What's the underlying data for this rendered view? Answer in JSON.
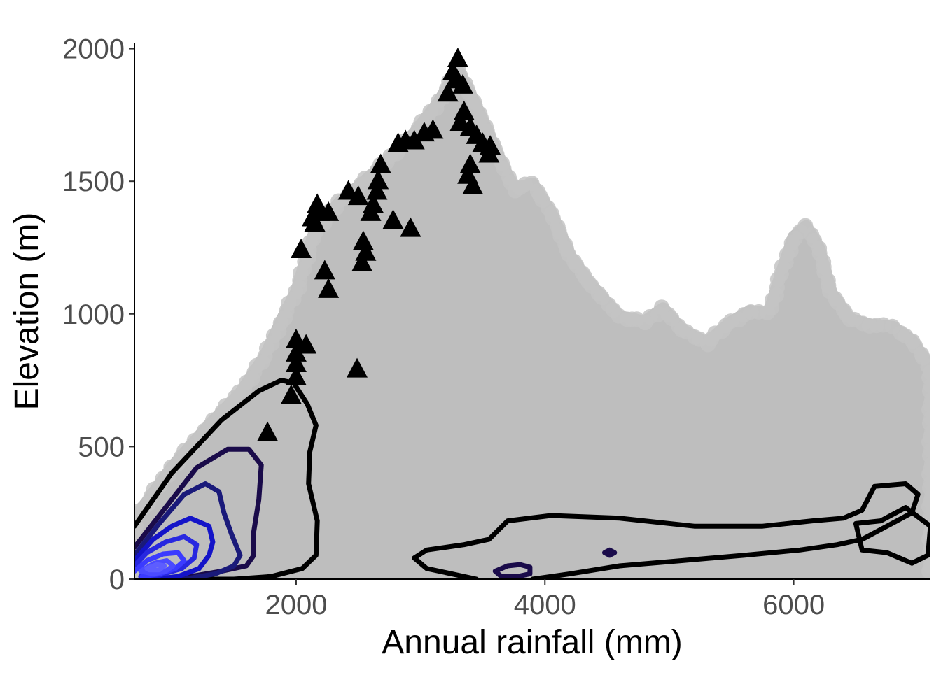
{
  "chart_data": {
    "type": "scatter",
    "title": "",
    "xlabel": "Annual rainfall (mm)",
    "ylabel": "Elevation (m)",
    "xlim": [
      700,
      7100
    ],
    "ylim": [
      0,
      2020
    ],
    "x_ticks": [
      2000,
      4000,
      6000
    ],
    "y_ticks": [
      0,
      500,
      1000,
      1500,
      2000
    ],
    "grid": false,
    "legend": "none",
    "colors": {
      "background_points": "#bebebe",
      "triangles": "#000000",
      "contour_dark": "#000000",
      "contour_mid": "#1a0b4a",
      "contour_blue": "#1414c8",
      "contour_core": "#3b3bff",
      "tick_text": "#4d4d4d"
    },
    "series": [
      {
        "kind": "background_cloud",
        "marker": "circle",
        "color": "#bebebe",
        "envelope": [
          {
            "x": 700,
            "y": 0
          },
          {
            "x": 700,
            "y": 230
          },
          {
            "x": 800,
            "y": 290
          },
          {
            "x": 1000,
            "y": 420
          },
          {
            "x": 1300,
            "y": 580
          },
          {
            "x": 1550,
            "y": 700
          },
          {
            "x": 1750,
            "y": 840
          },
          {
            "x": 1900,
            "y": 990
          },
          {
            "x": 2000,
            "y": 1080
          },
          {
            "x": 2150,
            "y": 1310
          },
          {
            "x": 2350,
            "y": 1420
          },
          {
            "x": 2650,
            "y": 1540
          },
          {
            "x": 2950,
            "y": 1680
          },
          {
            "x": 3150,
            "y": 1800
          },
          {
            "x": 3300,
            "y": 1920
          },
          {
            "x": 3450,
            "y": 1780
          },
          {
            "x": 3600,
            "y": 1620
          },
          {
            "x": 3750,
            "y": 1470
          },
          {
            "x": 3900,
            "y": 1490
          },
          {
            "x": 4050,
            "y": 1380
          },
          {
            "x": 4200,
            "y": 1220
          },
          {
            "x": 4350,
            "y": 1120
          },
          {
            "x": 4500,
            "y": 1040
          },
          {
            "x": 4600,
            "y": 990
          },
          {
            "x": 4800,
            "y": 970
          },
          {
            "x": 4950,
            "y": 1020
          },
          {
            "x": 5100,
            "y": 940
          },
          {
            "x": 5300,
            "y": 890
          },
          {
            "x": 5500,
            "y": 970
          },
          {
            "x": 5650,
            "y": 1010
          },
          {
            "x": 5800,
            "y": 1000
          },
          {
            "x": 5900,
            "y": 1150
          },
          {
            "x": 6000,
            "y": 1290
          },
          {
            "x": 6100,
            "y": 1330
          },
          {
            "x": 6200,
            "y": 1250
          },
          {
            "x": 6300,
            "y": 1080
          },
          {
            "x": 6450,
            "y": 980
          },
          {
            "x": 6600,
            "y": 960
          },
          {
            "x": 6800,
            "y": 950
          },
          {
            "x": 6950,
            "y": 900
          },
          {
            "x": 7050,
            "y": 830
          },
          {
            "x": 7100,
            "y": 780
          },
          {
            "x": 7100,
            "y": 0
          }
        ]
      },
      {
        "kind": "triangles",
        "marker": "triangle",
        "color": "#000000",
        "points": [
          {
            "x": 3300,
            "y": 1960
          },
          {
            "x": 3260,
            "y": 1910
          },
          {
            "x": 3280,
            "y": 1880
          },
          {
            "x": 3340,
            "y": 1860
          },
          {
            "x": 3220,
            "y": 1830
          },
          {
            "x": 3350,
            "y": 1760
          },
          {
            "x": 3320,
            "y": 1720
          },
          {
            "x": 3400,
            "y": 1700
          },
          {
            "x": 3450,
            "y": 1670
          },
          {
            "x": 3100,
            "y": 1690
          },
          {
            "x": 3030,
            "y": 1680
          },
          {
            "x": 2950,
            "y": 1650
          },
          {
            "x": 2880,
            "y": 1650
          },
          {
            "x": 2820,
            "y": 1640
          },
          {
            "x": 3500,
            "y": 1640
          },
          {
            "x": 3560,
            "y": 1630
          },
          {
            "x": 3550,
            "y": 1600
          },
          {
            "x": 3400,
            "y": 1560
          },
          {
            "x": 3380,
            "y": 1520
          },
          {
            "x": 3420,
            "y": 1480
          },
          {
            "x": 2680,
            "y": 1560
          },
          {
            "x": 2660,
            "y": 1500
          },
          {
            "x": 2650,
            "y": 1460
          },
          {
            "x": 2420,
            "y": 1460
          },
          {
            "x": 2500,
            "y": 1440
          },
          {
            "x": 2620,
            "y": 1410
          },
          {
            "x": 2600,
            "y": 1380
          },
          {
            "x": 2170,
            "y": 1410
          },
          {
            "x": 2190,
            "y": 1380
          },
          {
            "x": 2260,
            "y": 1380
          },
          {
            "x": 2130,
            "y": 1360
          },
          {
            "x": 2150,
            "y": 1340
          },
          {
            "x": 2780,
            "y": 1350
          },
          {
            "x": 2920,
            "y": 1320
          },
          {
            "x": 2540,
            "y": 1270
          },
          {
            "x": 2560,
            "y": 1230
          },
          {
            "x": 2040,
            "y": 1240
          },
          {
            "x": 2530,
            "y": 1190
          },
          {
            "x": 2230,
            "y": 1160
          },
          {
            "x": 2260,
            "y": 1090
          },
          {
            "x": 2000,
            "y": 900
          },
          {
            "x": 2080,
            "y": 880
          },
          {
            "x": 2000,
            "y": 850
          },
          {
            "x": 2000,
            "y": 810
          },
          {
            "x": 2490,
            "y": 790
          },
          {
            "x": 2000,
            "y": 760
          },
          {
            "x": 1960,
            "y": 690
          },
          {
            "x": 1770,
            "y": 550
          }
        ]
      },
      {
        "kind": "density_contours",
        "contours": [
          {
            "level": 1,
            "color": "#000000",
            "path": [
              [
                700,
                200
              ],
              [
                1000,
                400
              ],
              [
                1400,
                600
              ],
              [
                1700,
                710
              ],
              [
                1880,
                750
              ],
              [
                1980,
                740
              ],
              [
                2090,
                660
              ],
              [
                2160,
                580
              ],
              [
                2110,
                480
              ],
              [
                2100,
                360
              ],
              [
                2170,
                220
              ],
              [
                2160,
                90
              ],
              [
                2050,
                40
              ],
              [
                1800,
                10
              ],
              [
                1500,
                0
              ],
              [
                1300,
                0
              ]
            ]
          },
          {
            "level": 1,
            "color": "#000000",
            "path": [
              [
                3450,
                0
              ],
              [
                3050,
                40
              ],
              [
                2950,
                80
              ],
              [
                3050,
                110
              ],
              [
                3350,
                130
              ],
              [
                3550,
                150
              ],
              [
                3700,
                220
              ],
              [
                4050,
                240
              ],
              [
                4600,
                230
              ],
              [
                5200,
                200
              ],
              [
                5750,
                200
              ],
              [
                6150,
                220
              ],
              [
                6400,
                230
              ],
              [
                6550,
                260
              ],
              [
                6650,
                350
              ],
              [
                6900,
                360
              ],
              [
                7000,
                320
              ],
              [
                6950,
                250
              ],
              [
                6750,
                200
              ],
              [
                6550,
                150
              ],
              [
                6350,
                130
              ],
              [
                6050,
                110
              ],
              [
                5600,
                90
              ],
              [
                5100,
                70
              ],
              [
                4600,
                50
              ],
              [
                4200,
                20
              ],
              [
                3900,
                0
              ]
            ]
          },
          {
            "level": 1,
            "color": "#000000",
            "path": [
              [
                6700,
                220
              ],
              [
                6900,
                270
              ],
              [
                7100,
                200
              ],
              [
                7080,
                90
              ],
              [
                6950,
                60
              ],
              [
                6750,
                100
              ],
              [
                6550,
                110
              ],
              [
                6500,
                210
              ],
              [
                6700,
                220
              ]
            ]
          },
          {
            "level": 2,
            "color": "#1a0b4a",
            "path": [
              [
                700,
                120
              ],
              [
                950,
                270
              ],
              [
                1200,
                420
              ],
              [
                1450,
                490
              ],
              [
                1620,
                490
              ],
              [
                1720,
                430
              ],
              [
                1700,
                300
              ],
              [
                1660,
                180
              ],
              [
                1660,
                90
              ],
              [
                1600,
                50
              ],
              [
                1400,
                30
              ],
              [
                1150,
                10
              ],
              [
                900,
                0
              ]
            ]
          },
          {
            "level": 2,
            "color": "#1a0b4a",
            "path": [
              [
                3600,
                30
              ],
              [
                3700,
                50
              ],
              [
                3800,
                55
              ],
              [
                3880,
                45
              ],
              [
                3880,
                20
              ],
              [
                3780,
                10
              ],
              [
                3650,
                10
              ],
              [
                3600,
                30
              ]
            ]
          },
          {
            "level": 2,
            "color": "#1a0b4a",
            "path": [
              [
                4480,
                100
              ],
              [
                4520,
                110
              ],
              [
                4560,
                100
              ],
              [
                4520,
                90
              ],
              [
                4480,
                100
              ]
            ]
          },
          {
            "level": 3,
            "color": "#1a1a7a",
            "path": [
              [
                700,
                90
              ],
              [
                900,
                210
              ],
              [
                1100,
                320
              ],
              [
                1270,
                360
              ],
              [
                1380,
                330
              ],
              [
                1420,
                250
              ],
              [
                1480,
                170
              ],
              [
                1550,
                90
              ],
              [
                1500,
                50
              ],
              [
                1350,
                20
              ],
              [
                1100,
                0
              ]
            ]
          },
          {
            "level": 4,
            "color": "#1414c8",
            "path": [
              [
                700,
                70
              ],
              [
                850,
                150
              ],
              [
                1000,
                200
              ],
              [
                1150,
                230
              ],
              [
                1300,
                200
              ],
              [
                1330,
                140
              ],
              [
                1300,
                90
              ],
              [
                1220,
                40
              ],
              [
                1050,
                10
              ],
              [
                850,
                0
              ]
            ]
          },
          {
            "level": 5,
            "color": "#2828e0",
            "path": [
              [
                700,
                50
              ],
              [
                800,
                100
              ],
              [
                950,
                140
              ],
              [
                1100,
                160
              ],
              [
                1200,
                130
              ],
              [
                1180,
                80
              ],
              [
                1080,
                40
              ],
              [
                900,
                15
              ],
              [
                750,
                10
              ]
            ]
          },
          {
            "level": 6,
            "color": "#3b3bff",
            "path": [
              [
                700,
                30
              ],
              [
                800,
                70
              ],
              [
                930,
                95
              ],
              [
                1050,
                100
              ],
              [
                1100,
                70
              ],
              [
                1030,
                40
              ],
              [
                900,
                20
              ],
              [
                760,
                10
              ]
            ]
          },
          {
            "level": 7,
            "color": "#4b4bff",
            "path": [
              [
                750,
                30
              ],
              [
                860,
                60
              ],
              [
                960,
                70
              ],
              [
                1010,
                50
              ],
              [
                950,
                30
              ],
              [
                850,
                20
              ],
              [
                750,
                30
              ]
            ]
          },
          {
            "level": 8,
            "color": "#5d5dff",
            "path": [
              [
                800,
                40
              ],
              [
                880,
                55
              ],
              [
                940,
                50
              ],
              [
                900,
                35
              ],
              [
                820,
                35
              ],
              [
                800,
                40
              ]
            ]
          }
        ]
      }
    ]
  }
}
